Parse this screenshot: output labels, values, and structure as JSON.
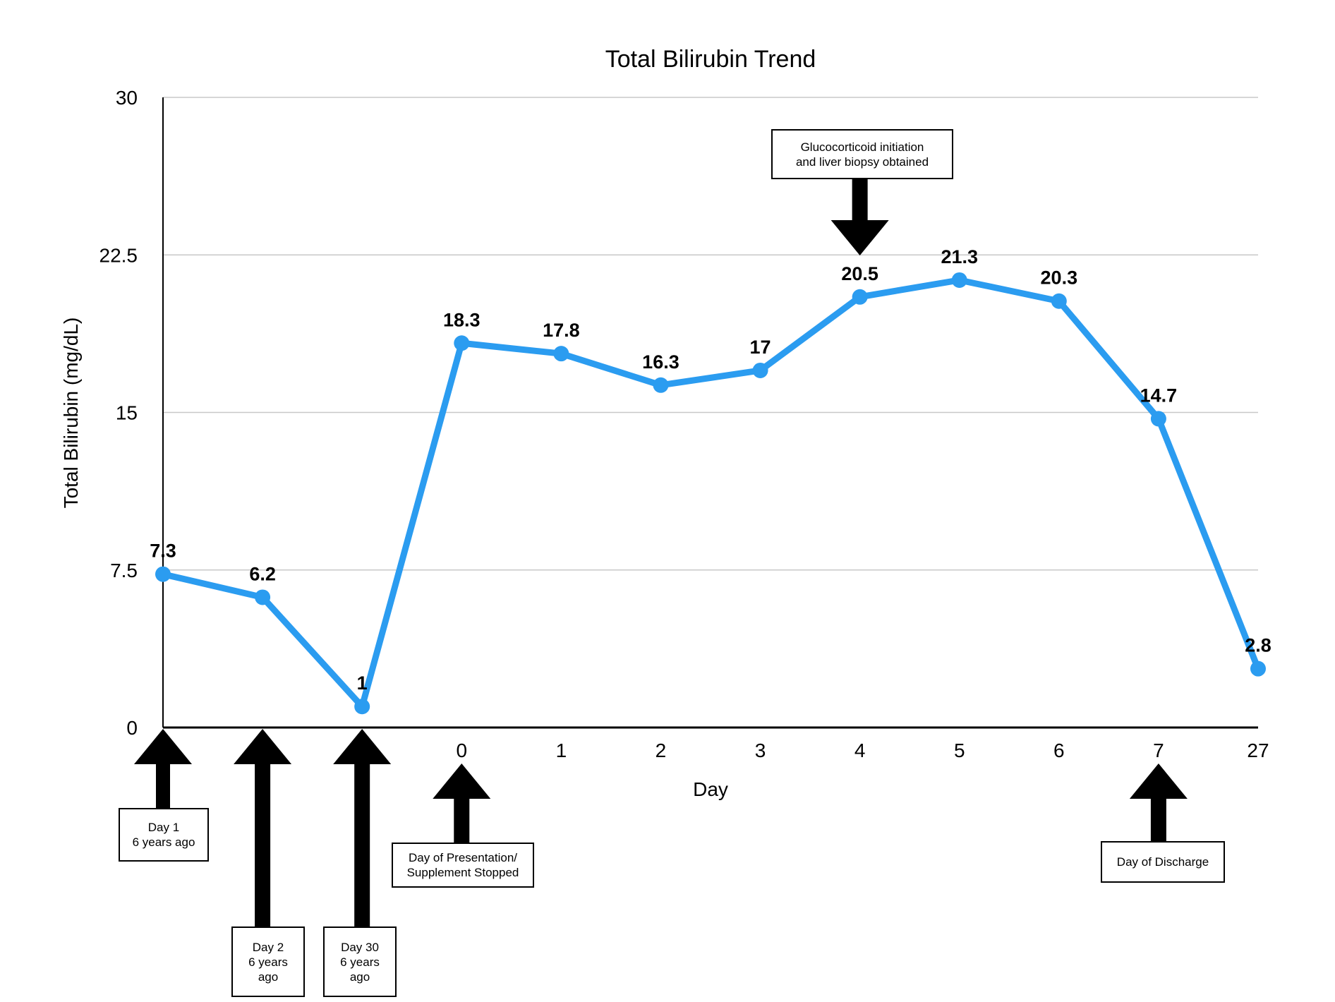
{
  "chart_data": {
    "type": "line",
    "title": "Total Bilirubin Trend",
    "xlabel": "Day",
    "ylabel": "Total Bilirubin (mg/dL)",
    "categories": [
      "",
      "",
      "",
      "0",
      "1",
      "2",
      "3",
      "4",
      "5",
      "6",
      "7",
      "27"
    ],
    "values": [
      7.3,
      6.2,
      1,
      18.3,
      17.8,
      16.3,
      17,
      20.5,
      21.3,
      20.3,
      14.7,
      2.8
    ],
    "value_labels": [
      "7.3",
      "6.2",
      "1",
      "18.3",
      "17.8",
      "16.3",
      "17",
      "20.5",
      "21.3",
      "20.3",
      "14.7",
      "2.8"
    ],
    "ylim": [
      0,
      30
    ],
    "yticks": [
      "0",
      "7.5",
      "15",
      "22.5",
      "30"
    ],
    "grid": true,
    "line_color": "#2b9cf0"
  },
  "annotations": [
    {
      "text": "Day 1\n6 years ago",
      "index": 0,
      "direction": "up"
    },
    {
      "text": "Day 2\n6 years\nago",
      "index": 1,
      "direction": "up"
    },
    {
      "text": "Day 30\n6 years\nago",
      "index": 2,
      "direction": "up"
    },
    {
      "text": "Day of Presentation/\nSupplement Stopped",
      "index": 3,
      "direction": "up"
    },
    {
      "text": "Glucocorticoid initiation\nand liver biopsy obtained",
      "index": 7,
      "direction": "down"
    },
    {
      "text": "Day of Discharge",
      "index": 10,
      "direction": "up"
    }
  ]
}
